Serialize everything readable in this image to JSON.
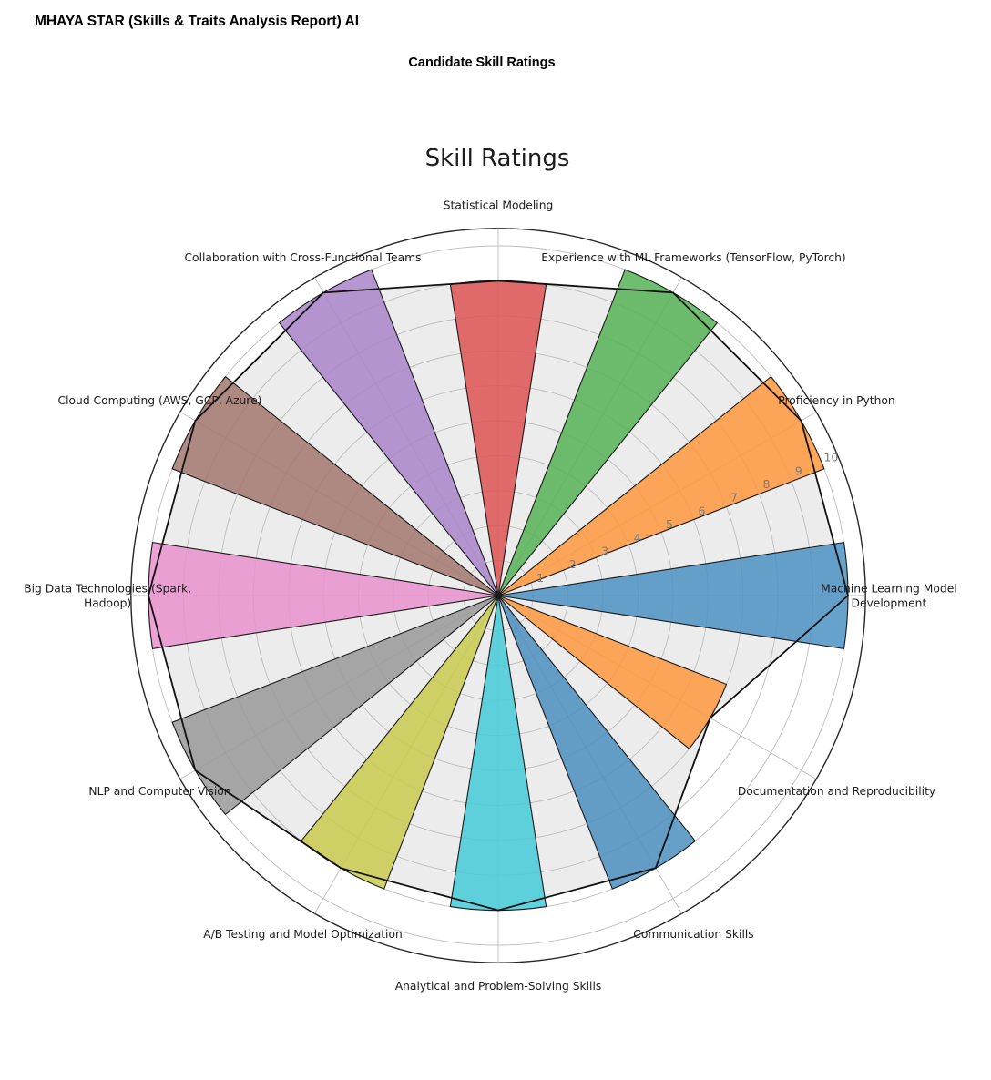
{
  "header": {
    "report_title": "MHAYA STAR (Skills & Traits Analysis Report) AI",
    "section_title": "Candidate Skill Ratings"
  },
  "chart_data": {
    "type": "polar_bar",
    "title": "Skill Ratings",
    "r_ticks": [
      1,
      2,
      3,
      4,
      5,
      6,
      7,
      8,
      9,
      10
    ],
    "r_max": 10.5,
    "r_tick_label_angle_deg": 22.5,
    "bar_width_deg": 17.5,
    "angle_step_deg": 30,
    "direction": "counterclockwise",
    "start_angle_deg": 0,
    "grid": true,
    "legend": "none",
    "categories": [
      {
        "label": "Machine Learning Model Development",
        "lines": [
          "Machine Learning Model",
          "Development"
        ],
        "value": 10,
        "angle_deg": 0,
        "color": "#4C92C3"
      },
      {
        "label": "Proficiency in Python",
        "lines": [
          "Proficiency in Python"
        ],
        "value": 10,
        "angle_deg": 30,
        "color": "#FF993E"
      },
      {
        "label": "Experience with ML Frameworks (TensorFlow, PyTorch)",
        "lines": [
          "Experience with ML Frameworks (TensorFlow, PyTorch)"
        ],
        "value": 10,
        "angle_deg": 60,
        "color": "#56B356"
      },
      {
        "label": "Statistical Modeling",
        "lines": [
          "Statistical Modeling"
        ],
        "value": 9,
        "angle_deg": 90,
        "color": "#DE5253"
      },
      {
        "label": "Collaboration with Cross-Functional Teams",
        "lines": [
          "Collaboration with Cross-Functional Teams"
        ],
        "value": 10,
        "angle_deg": 120,
        "color": "#A985CA"
      },
      {
        "label": "Cloud Computing (AWS, GCP, Azure)",
        "lines": [
          "Cloud Computing (AWS, GCP, Azure)"
        ],
        "value": 10,
        "angle_deg": 150,
        "color": "#A3786F"
      },
      {
        "label": "Big Data Technologies (Spark, Hadoop)",
        "lines": [
          "Big Data Technologies (Spark,",
          "Hadoop)"
        ],
        "value": 10,
        "angle_deg": 180,
        "color": "#E992CE"
      },
      {
        "label": "NLP and Computer Vision",
        "lines": [
          "NLP and Computer Vision"
        ],
        "value": 10,
        "angle_deg": 210,
        "color": "#999999"
      },
      {
        "label": "A/B Testing and Model Optimization",
        "lines": [
          "A/B Testing and Model Optimization"
        ],
        "value": 9,
        "angle_deg": 240,
        "color": "#C9CA4E"
      },
      {
        "label": "Analytical and Problem-Solving Skills",
        "lines": [
          "Analytical and Problem-Solving Skills"
        ],
        "value": 9,
        "angle_deg": 270,
        "color": "#45CBD9"
      },
      {
        "label": "Communication Skills",
        "lines": [
          "Communication Skills"
        ],
        "value": 9,
        "angle_deg": 300,
        "color": "#4B8FBF"
      },
      {
        "label": "Documentation and Reproducibility",
        "lines": [
          "Documentation and Reproducibility"
        ],
        "value": 7,
        "angle_deg": 330,
        "color": "#FF993E"
      }
    ],
    "colors": {
      "grid": "#bdbdbd",
      "spine": "#262626",
      "bar_edge": "#1a1a1a",
      "radar_outline": "#111111",
      "radar_fill": "#ececec",
      "tick_label": "#7a7a7a",
      "category_label": "#1c1c1c",
      "title": "#1c1c1c",
      "background": "#ffffff"
    }
  }
}
